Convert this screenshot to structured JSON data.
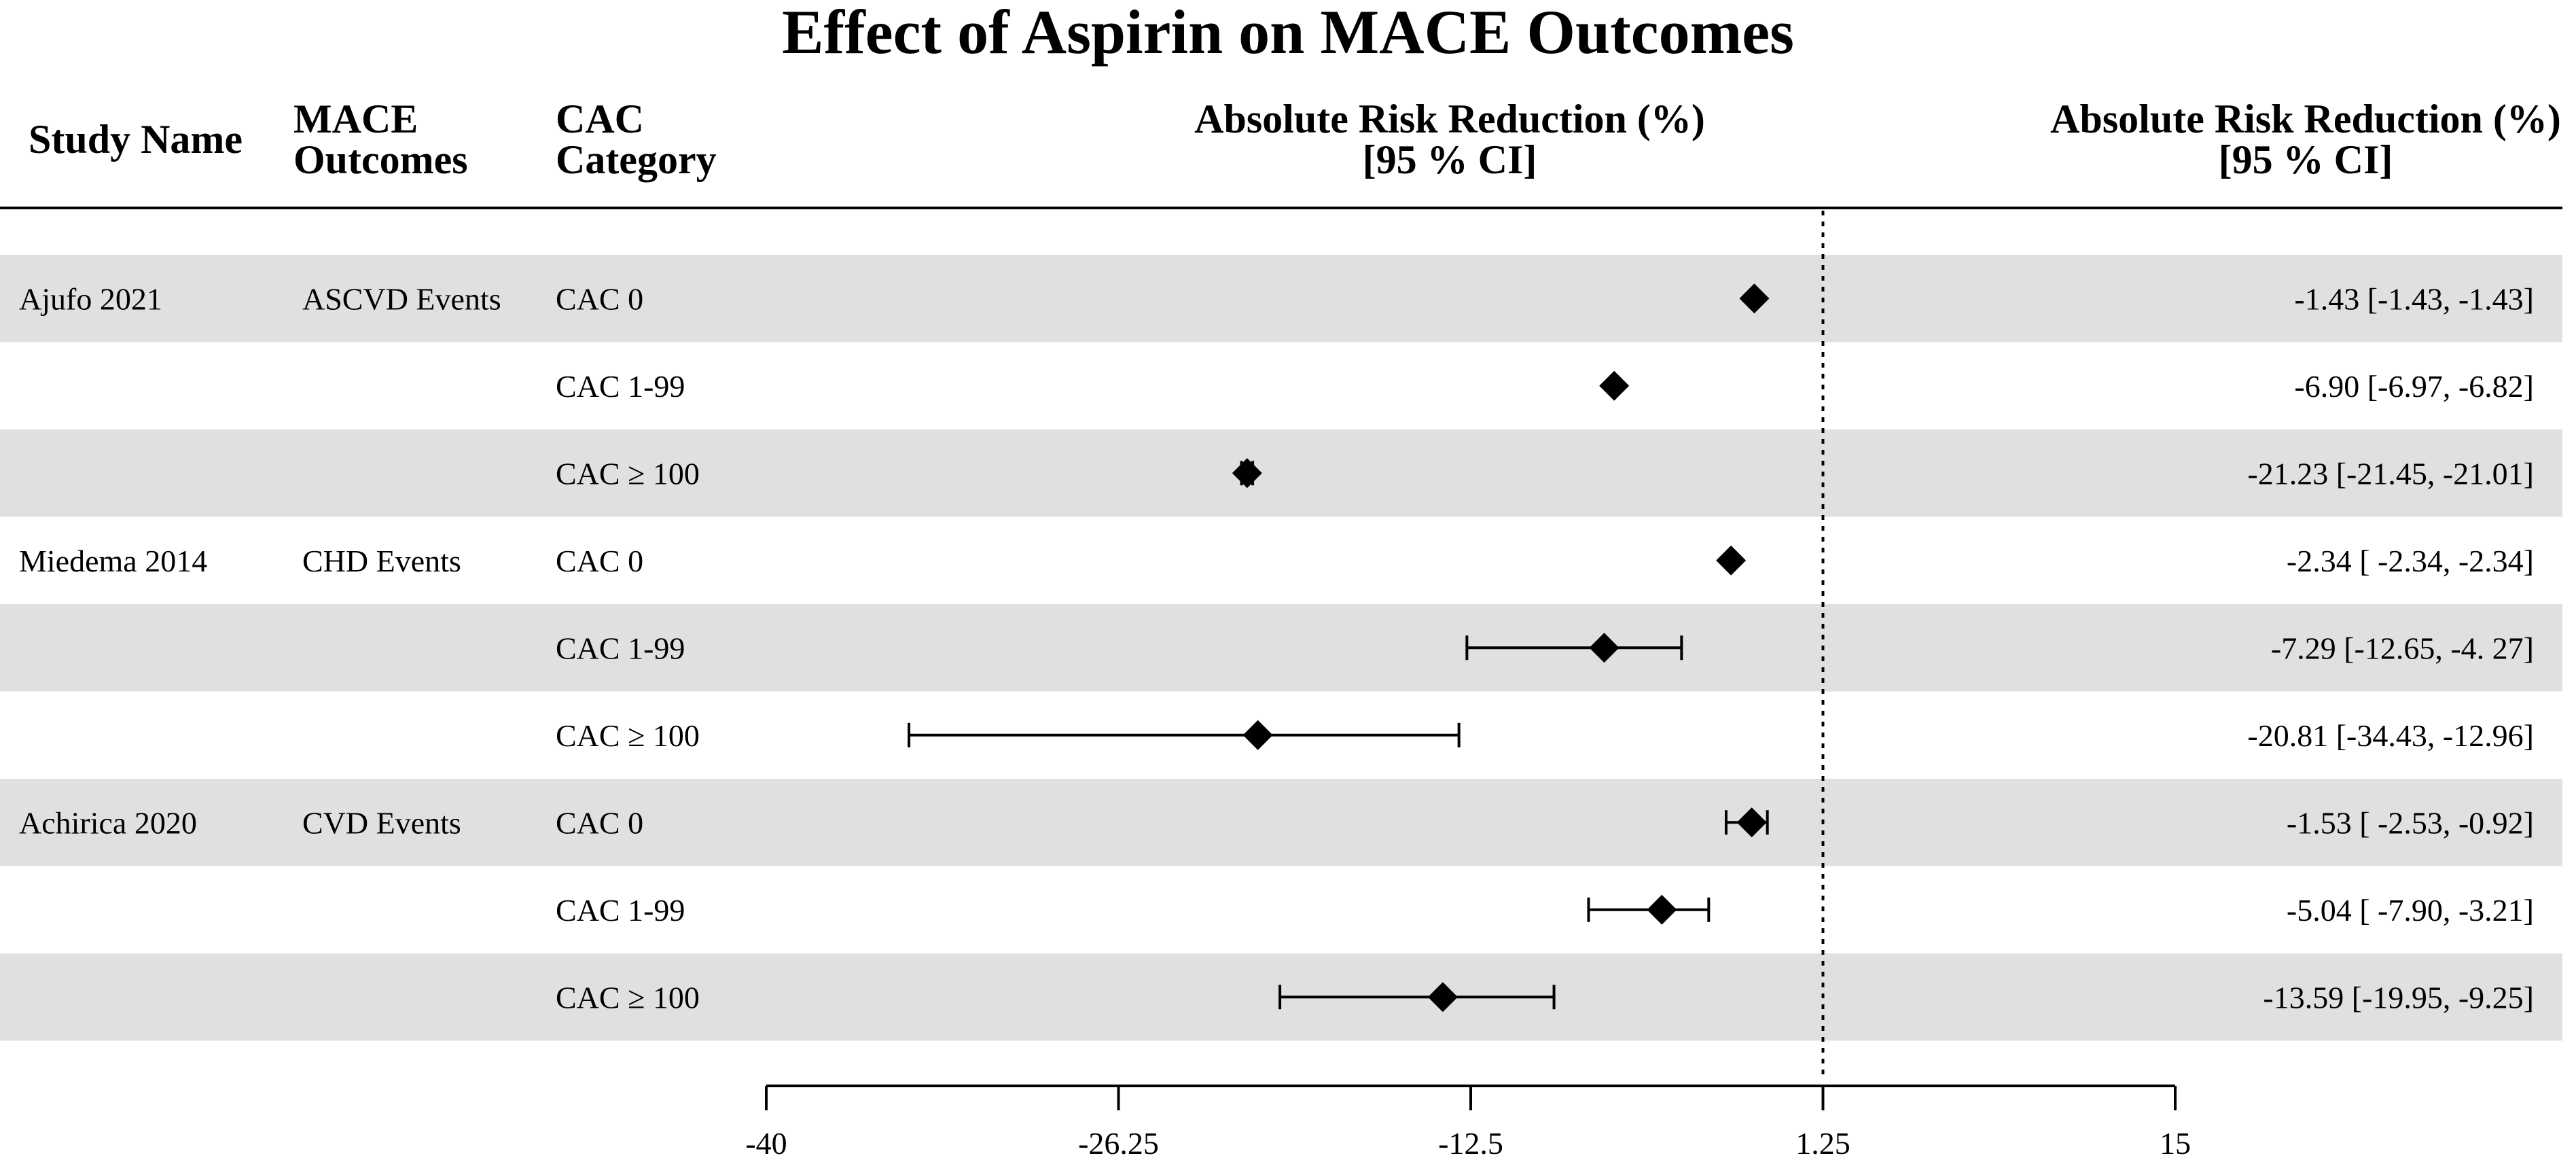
{
  "chart_data": {
    "type": "forest",
    "title": "Effect of Aspirin on MACE Outcomes",
    "column_headers": {
      "study_name": "Study Name",
      "mace_outcomes": [
        "MACE",
        "Outcomes"
      ],
      "cac_category": [
        "CAC",
        "Category"
      ],
      "plot_header": [
        "Absolute Risk Reduction (%)",
        "[95 % CI]"
      ],
      "value_header": [
        "Absolute Risk Reduction (%)",
        "[95 % CI]"
      ]
    },
    "x_axis": {
      "range": [
        -40,
        15
      ],
      "ticks": [
        -40,
        -26.25,
        -12.5,
        1.25,
        15
      ],
      "tick_labels": [
        "-40",
        "-26.25",
        "-12.5",
        "1.25",
        "15"
      ],
      "reference_line": 1.25
    },
    "rows": [
      {
        "study": "Ajufo 2021",
        "outcome": "ASCVD Events",
        "category": "CAC 0",
        "estimate": -1.43,
        "lower": -1.43,
        "upper": -1.43,
        "label": "-1.43 [-1.43, -1.43]",
        "shaded": true
      },
      {
        "study": "",
        "outcome": "",
        "category": "CAC 1-99",
        "estimate": -6.9,
        "lower": -6.97,
        "upper": -6.82,
        "label": "-6.90 [-6.97, -6.82]",
        "shaded": false
      },
      {
        "study": "",
        "outcome": "",
        "category": "CAC ≥ 100",
        "estimate": -21.23,
        "lower": -21.45,
        "upper": -21.01,
        "label": "-21.23 [-21.45, -21.01]",
        "shaded": true
      },
      {
        "study": "Miedema 2014",
        "outcome": "CHD Events",
        "category": "CAC 0",
        "estimate": -2.34,
        "lower": -2.34,
        "upper": -2.34,
        "label": "-2.34 [ -2.34, -2.34]",
        "shaded": false
      },
      {
        "study": "",
        "outcome": "",
        "category": "CAC 1-99",
        "estimate": -7.29,
        "lower": -12.65,
        "upper": -4.27,
        "label": "-7.29 [-12.65, -4. 27]",
        "shaded": true
      },
      {
        "study": "",
        "outcome": "",
        "category": "CAC ≥ 100",
        "estimate": -20.81,
        "lower": -34.43,
        "upper": -12.96,
        "label": "-20.81 [-34.43, -12.96]",
        "shaded": false
      },
      {
        "study": "Achirica 2020",
        "outcome": "CVD Events",
        "category": "CAC 0",
        "estimate": -1.53,
        "lower": -2.53,
        "upper": -0.92,
        "label": "-1.53 [ -2.53, -0.92]",
        "shaded": true
      },
      {
        "study": "",
        "outcome": "",
        "category": "CAC 1-99",
        "estimate": -5.04,
        "lower": -7.9,
        "upper": -3.21,
        "label": "-5.04 [ -7.90, -3.21]",
        "shaded": false
      },
      {
        "study": "",
        "outcome": "",
        "category": "CAC ≥ 100",
        "estimate": -13.59,
        "lower": -19.95,
        "upper": -9.25,
        "label": "-13.59 [-19.95, -9.25]",
        "shaded": true
      }
    ],
    "colors": {
      "row_shade": "#e0e0e0",
      "marker": "#000000",
      "text": "#000000"
    },
    "marker_shape": "diamond",
    "grid": false,
    "legend": "none"
  }
}
